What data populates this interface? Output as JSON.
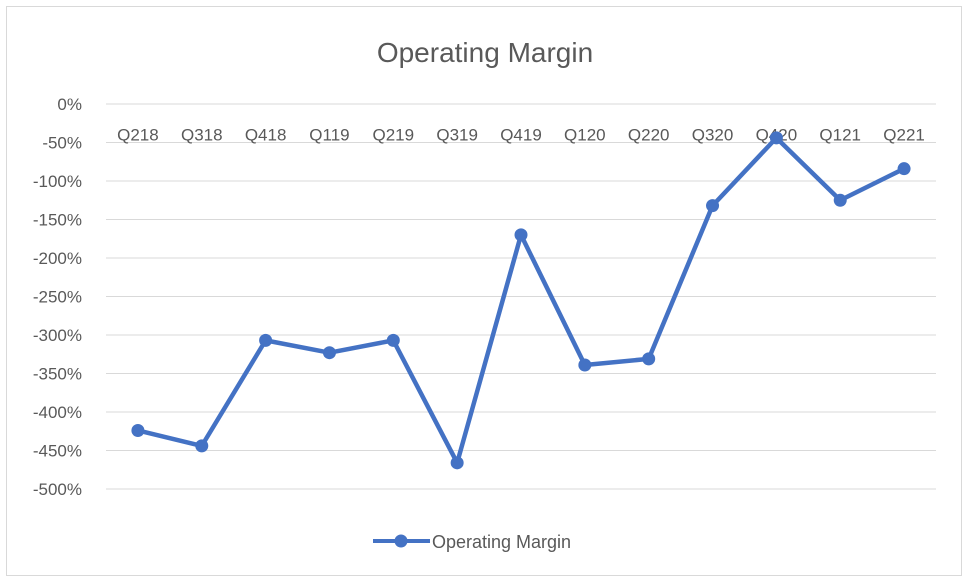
{
  "chart_data": {
    "type": "line",
    "title": "Operating Margin",
    "xlabel": "",
    "ylabel": "",
    "categories": [
      "Q218",
      "Q318",
      "Q418",
      "Q119",
      "Q219",
      "Q319",
      "Q419",
      "Q120",
      "Q220",
      "Q320",
      "Q420",
      "Q121",
      "Q221"
    ],
    "series": [
      {
        "name": "Operating Margin",
        "values": [
          -424,
          -444,
          -307,
          -323,
          -307,
          -466,
          -170,
          -339,
          -331,
          -132,
          -44,
          -125,
          -84
        ],
        "color": "#4472C4"
      }
    ],
    "yticks": [
      "0%",
      "-50%",
      "-100%",
      "-150%",
      "-200%",
      "-250%",
      "-300%",
      "-350%",
      "-400%",
      "-450%",
      "-500%"
    ],
    "ytick_values": [
      0,
      -50,
      -100,
      -150,
      -200,
      -250,
      -300,
      -350,
      -400,
      -450,
      -500
    ],
    "ylim": [
      -500,
      0
    ],
    "grid": true,
    "legend_position": "bottom"
  }
}
